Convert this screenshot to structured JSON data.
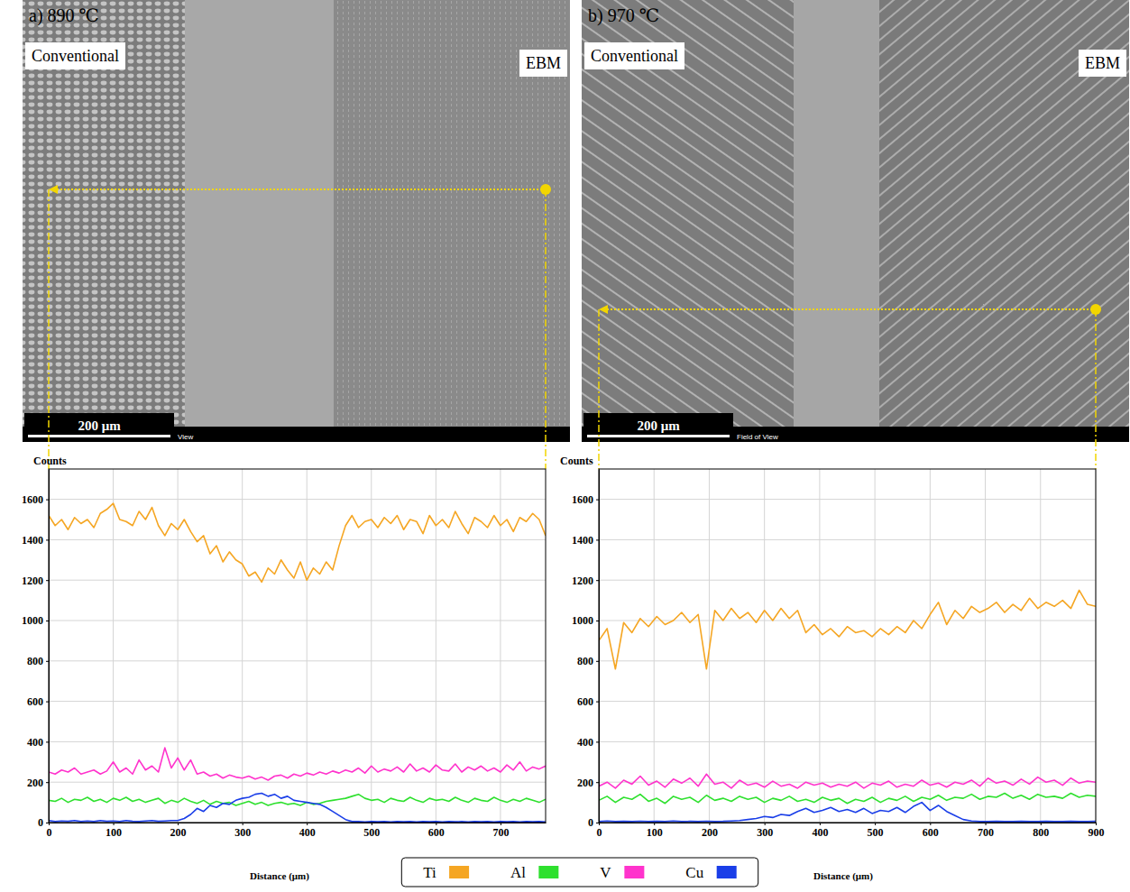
{
  "chart_data": [
    {
      "type": "line",
      "title": "a) 890 ℃",
      "annotations": [
        "Conventional",
        "EBM",
        "200 μm",
        "View"
      ],
      "x_label": "Distance (μm)",
      "y_label": "Counts",
      "xlim": [
        0,
        770
      ],
      "xticks": [
        0,
        100,
        200,
        300,
        400,
        500,
        600,
        700
      ],
      "ylim": [
        0,
        1750
      ],
      "yticks": [
        0,
        200,
        400,
        600,
        800,
        1000,
        1200,
        1400,
        1600
      ],
      "grid": true,
      "legend": "bottom",
      "x": [
        0,
        10,
        20,
        30,
        40,
        50,
        60,
        70,
        80,
        90,
        100,
        110,
        120,
        130,
        140,
        150,
        160,
        170,
        180,
        190,
        200,
        210,
        220,
        230,
        240,
        250,
        260,
        270,
        280,
        290,
        300,
        310,
        320,
        330,
        340,
        350,
        360,
        370,
        380,
        390,
        400,
        410,
        420,
        430,
        440,
        450,
        460,
        470,
        480,
        490,
        500,
        510,
        520,
        530,
        540,
        550,
        560,
        570,
        580,
        590,
        600,
        610,
        620,
        630,
        640,
        650,
        660,
        670,
        680,
        690,
        700,
        710,
        720,
        730,
        740,
        750,
        760,
        770
      ],
      "series": [
        {
          "name": "Ti",
          "color": "#f5a623",
          "values": [
            1520,
            1470,
            1500,
            1450,
            1510,
            1480,
            1500,
            1460,
            1530,
            1550,
            1580,
            1500,
            1490,
            1470,
            1540,
            1500,
            1560,
            1470,
            1420,
            1480,
            1450,
            1500,
            1440,
            1390,
            1420,
            1330,
            1370,
            1290,
            1340,
            1300,
            1280,
            1220,
            1240,
            1190,
            1260,
            1230,
            1300,
            1250,
            1210,
            1290,
            1200,
            1260,
            1230,
            1290,
            1250,
            1370,
            1470,
            1520,
            1460,
            1490,
            1500,
            1460,
            1510,
            1480,
            1520,
            1450,
            1500,
            1490,
            1430,
            1520,
            1470,
            1500,
            1460,
            1540,
            1480,
            1430,
            1510,
            1490,
            1460,
            1520,
            1470,
            1500,
            1440,
            1510,
            1490,
            1530,
            1500,
            1420
          ]
        },
        {
          "name": "Al",
          "color": "#2ee02e",
          "values": [
            110,
            105,
            120,
            100,
            115,
            110,
            125,
            105,
            115,
            100,
            120,
            110,
            125,
            105,
            115,
            100,
            110,
            120,
            95,
            110,
            100,
            120,
            105,
            95,
            110,
            90,
            105,
            95,
            100,
            85,
            95,
            105,
            90,
            100,
            85,
            95,
            100,
            90,
            95,
            85,
            100,
            90,
            95,
            105,
            110,
            115,
            120,
            130,
            140,
            120,
            110,
            115,
            100,
            120,
            110,
            105,
            125,
            110,
            100,
            120,
            110,
            115,
            105,
            125,
            110,
            100,
            120,
            110,
            105,
            125,
            110,
            100,
            115,
            105,
            120,
            110,
            100,
            115
          ]
        },
        {
          "name": "V",
          "color": "#ff33cc",
          "values": [
            250,
            240,
            260,
            250,
            270,
            240,
            250,
            260,
            240,
            255,
            300,
            250,
            270,
            240,
            310,
            260,
            280,
            250,
            370,
            270,
            320,
            260,
            310,
            240,
            250,
            230,
            240,
            220,
            235,
            225,
            220,
            230,
            215,
            225,
            210,
            230,
            235,
            220,
            240,
            230,
            245,
            235,
            250,
            240,
            255,
            245,
            260,
            250,
            270,
            245,
            280,
            250,
            265,
            255,
            275,
            250,
            290,
            255,
            270,
            250,
            285,
            260,
            255,
            290,
            250,
            275,
            260,
            280,
            255,
            270,
            250,
            285,
            260,
            300,
            255,
            275,
            265,
            280
          ]
        },
        {
          "name": "Cu",
          "color": "#1a3ee8",
          "values": [
            10,
            5,
            8,
            6,
            10,
            5,
            8,
            5,
            10,
            6,
            8,
            5,
            10,
            6,
            5,
            8,
            10,
            6,
            8,
            10,
            10,
            20,
            40,
            70,
            55,
            85,
            75,
            95,
            90,
            110,
            120,
            125,
            140,
            145,
            130,
            140,
            120,
            130,
            110,
            105,
            100,
            95,
            90,
            75,
            55,
            35,
            15,
            5,
            5,
            3,
            5,
            4,
            5,
            3,
            5,
            4,
            5,
            3,
            5,
            4,
            5,
            3,
            5,
            4,
            5,
            3,
            5,
            4,
            5,
            3,
            5,
            4,
            5,
            3,
            5,
            4,
            5,
            3
          ]
        }
      ]
    },
    {
      "type": "line",
      "title": "b) 970 ℃",
      "annotations": [
        "Conventional",
        "EBM",
        "200 μm",
        "Field of View"
      ],
      "x_label": "Distance (μm)",
      "y_label": "Counts",
      "xlim": [
        0,
        900
      ],
      "xticks": [
        0,
        100,
        200,
        300,
        400,
        500,
        600,
        700,
        800,
        900
      ],
      "ylim": [
        0,
        1750
      ],
      "yticks": [
        0,
        200,
        400,
        600,
        800,
        1000,
        1200,
        1400,
        1600
      ],
      "grid": true,
      "x": [
        0,
        15,
        30,
        45,
        60,
        75,
        90,
        105,
        120,
        135,
        150,
        165,
        180,
        195,
        210,
        225,
        240,
        255,
        270,
        285,
        300,
        315,
        330,
        345,
        360,
        375,
        390,
        405,
        420,
        435,
        450,
        465,
        480,
        495,
        510,
        525,
        540,
        555,
        570,
        585,
        600,
        615,
        630,
        645,
        660,
        675,
        690,
        705,
        720,
        735,
        750,
        765,
        780,
        795,
        810,
        825,
        840,
        855,
        870,
        885,
        900
      ],
      "series": [
        {
          "name": "Ti",
          "color": "#f5a623",
          "values": [
            900,
            960,
            760,
            990,
            940,
            1010,
            970,
            1020,
            980,
            1000,
            1040,
            990,
            1030,
            760,
            1050,
            1000,
            1060,
            1010,
            1040,
            990,
            1050,
            1000,
            1060,
            1010,
            1050,
            940,
            980,
            930,
            960,
            920,
            970,
            940,
            950,
            920,
            960,
            930,
            970,
            940,
            1000,
            960,
            1030,
            1090,
            980,
            1050,
            1010,
            1070,
            1040,
            1060,
            1090,
            1040,
            1080,
            1050,
            1110,
            1060,
            1090,
            1070,
            1100,
            1060,
            1150,
            1080,
            1070
          ]
        },
        {
          "name": "Al",
          "color": "#2ee02e",
          "values": [
            110,
            130,
            100,
            125,
            115,
            140,
            105,
            120,
            95,
            130,
            115,
            125,
            100,
            135,
            110,
            120,
            105,
            130,
            115,
            125,
            100,
            120,
            110,
            130,
            105,
            115,
            100,
            125,
            110,
            120,
            95,
            115,
            105,
            125,
            100,
            120,
            110,
            130,
            105,
            125,
            115,
            135,
            110,
            125,
            120,
            140,
            115,
            130,
            125,
            145,
            120,
            135,
            115,
            140,
            125,
            130,
            120,
            145,
            125,
            135,
            130
          ]
        },
        {
          "name": "V",
          "color": "#ff33cc",
          "values": [
            180,
            200,
            170,
            210,
            190,
            230,
            185,
            205,
            175,
            215,
            195,
            220,
            180,
            240,
            190,
            200,
            170,
            210,
            185,
            195,
            175,
            205,
            180,
            190,
            170,
            200,
            185,
            195,
            175,
            190,
            180,
            200,
            170,
            195,
            185,
            205,
            175,
            190,
            180,
            210,
            185,
            195,
            175,
            200,
            190,
            210,
            180,
            220,
            195,
            205,
            185,
            215,
            190,
            225,
            200,
            210,
            185,
            220,
            195,
            205,
            200
          ]
        },
        {
          "name": "Cu",
          "color": "#1a3ee8",
          "values": [
            5,
            8,
            5,
            6,
            5,
            7,
            5,
            6,
            5,
            8,
            5,
            6,
            5,
            7,
            5,
            6,
            8,
            10,
            15,
            20,
            30,
            25,
            40,
            35,
            55,
            70,
            50,
            60,
            75,
            55,
            65,
            50,
            70,
            45,
            60,
            55,
            75,
            50,
            80,
            100,
            60,
            85,
            55,
            35,
            15,
            8,
            5,
            5,
            6,
            5,
            5,
            6,
            5,
            5,
            6,
            5,
            5,
            6,
            5,
            5,
            6
          ]
        }
      ]
    }
  ]
}
